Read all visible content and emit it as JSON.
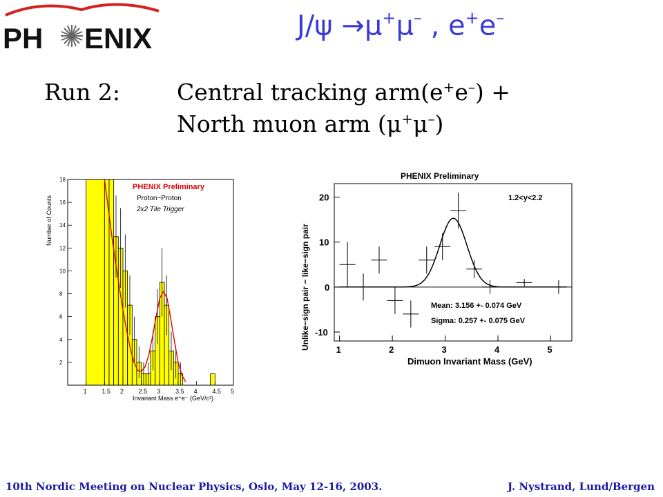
{
  "logo": {
    "text": "PHENIX",
    "colors": {
      "text": "#111111",
      "swoosh": "#d42020",
      "star": "#555555"
    }
  },
  "slide_title": {
    "prefix": "J/ψ →μ",
    "sup1": "+",
    "mid1": "μ",
    "sup2": "–",
    "mid2": " , e",
    "sup3": "+",
    "mid3": "e",
    "sup4": "–"
  },
  "run": {
    "label": "Run 2:",
    "line1": {
      "text": "Central tracking arm(e",
      "sup1": "+",
      "mid": "e",
      "sup2": "–",
      "tail": ") +"
    },
    "line2": {
      "text": "North muon arm (μ",
      "sup1": "+",
      "mid": "μ",
      "sup2": "–",
      "tail": ")"
    }
  },
  "footer": {
    "left": "10th Nordic Meeting on Nuclear Physics, Oslo, May 12-16, 2003.",
    "right": "J. Nystrand, Lund/Bergen"
  },
  "chart_data": [
    {
      "type": "bar",
      "title": "PHENIX Preliminary",
      "annotations": [
        "Proton−Proton",
        "2x2 Tile Trigger"
      ],
      "xlabel": "Invariant Mass e⁺e⁻ (GeV/c²)",
      "ylabel": "Number of Counts",
      "xlim": [
        0.5,
        5
      ],
      "ylim": [
        0,
        18
      ],
      "x_ticks": [
        "1",
        "1.5",
        "2",
        "2.5",
        "3",
        "3.5",
        "4",
        "4.5",
        "5"
      ],
      "y_ticks": [
        "2",
        "4",
        "6",
        "8",
        "10",
        "12",
        "14",
        "16",
        "18"
      ],
      "bins": [
        {
          "x0": 1.0,
          "x1": 1.5,
          "fill": 18,
          "err": 0
        },
        {
          "x0": 1.5,
          "x1": 1.625,
          "fill": 18,
          "err": 0
        },
        {
          "x0": 1.625,
          "x1": 1.75,
          "fill": 18,
          "err": 0
        },
        {
          "x0": 1.75,
          "x1": 1.875,
          "fill": 13,
          "err": 3.6
        },
        {
          "x0": 1.875,
          "x1": 2.0,
          "fill": 12,
          "err": 3.5
        },
        {
          "x0": 2.0,
          "x1": 2.125,
          "fill": 10,
          "err": 3.2
        },
        {
          "x0": 2.125,
          "x1": 2.25,
          "fill": 7,
          "err": 2.6
        },
        {
          "x0": 2.25,
          "x1": 2.375,
          "fill": 4,
          "err": 2.0
        },
        {
          "x0": 2.375,
          "x1": 2.5,
          "fill": 2,
          "err": 1.4
        },
        {
          "x0": 2.5,
          "x1": 2.625,
          "fill": 1,
          "err": 1.0
        },
        {
          "x0": 2.625,
          "x1": 2.75,
          "fill": 1,
          "err": 1.0
        },
        {
          "x0": 2.75,
          "x1": 2.875,
          "fill": 3,
          "err": 1.7
        },
        {
          "x0": 2.875,
          "x1": 3.0,
          "fill": 6,
          "err": 2.4
        },
        {
          "x0": 3.0,
          "x1": 3.125,
          "fill": 9,
          "err": 3.0
        },
        {
          "x0": 3.125,
          "x1": 3.25,
          "fill": 7,
          "err": 2.6
        },
        {
          "x0": 3.25,
          "x1": 3.375,
          "fill": 3,
          "err": 1.7
        },
        {
          "x0": 3.375,
          "x1": 3.5,
          "fill": 2,
          "err": 1.4
        },
        {
          "x0": 3.5,
          "x1": 3.625,
          "fill": 1,
          "err": 1.0
        },
        {
          "x0": 4.375,
          "x1": 4.5,
          "fill": 1,
          "err": 0
        }
      ],
      "fit_curve": {
        "x": [
          1.5,
          1.6,
          1.7,
          1.8,
          1.9,
          2.0,
          2.1,
          2.2,
          2.3,
          2.4,
          2.5,
          2.6,
          2.7,
          2.8,
          2.9,
          3.0,
          3.1,
          3.2,
          3.3,
          3.4,
          3.5,
          3.6,
          3.7
        ],
        "y": [
          18,
          15.5,
          13,
          10.8,
          8.6,
          6.6,
          4.8,
          3.2,
          2.0,
          1.3,
          1.2,
          1.6,
          2.6,
          4.2,
          6.0,
          7.6,
          8.2,
          7.6,
          5.8,
          3.8,
          2.0,
          0.9,
          0.3
        ]
      },
      "colors": {
        "fill": "#ffff00",
        "outline": "#000000",
        "fit": "#e00000",
        "title": "#e00000"
      }
    },
    {
      "type": "scatter",
      "title": "PHENIX Preliminary",
      "annotations": [
        "1.2<y<2.2",
        "Mean: 3.156 +- 0.074 GeV",
        "Sigma: 0.257 +- 0.075 GeV"
      ],
      "xlabel": "Dimuon Invariant Mass (GeV)",
      "ylabel": "Unlike−sign pair − like−sign pair",
      "xlim": [
        0.9,
        5.4
      ],
      "ylim": [
        -12,
        23
      ],
      "x_ticks": [
        "1",
        "2",
        "3",
        "4",
        "5"
      ],
      "y_ticks": [
        "-10",
        "0",
        "10",
        "20"
      ],
      "points": [
        {
          "x": 1.15,
          "y": 5,
          "ex": 0.15,
          "ey": 5
        },
        {
          "x": 1.45,
          "y": 0,
          "ex": 0.0,
          "ey": 3
        },
        {
          "x": 1.75,
          "y": 6,
          "ex": 0.15,
          "ey": 3
        },
        {
          "x": 2.05,
          "y": -3,
          "ex": 0.15,
          "ey": 3
        },
        {
          "x": 2.35,
          "y": -6,
          "ex": 0.15,
          "ey": 3
        },
        {
          "x": 2.65,
          "y": 6,
          "ex": 0.15,
          "ey": 3
        },
        {
          "x": 2.95,
          "y": 9,
          "ex": 0.15,
          "ey": 3
        },
        {
          "x": 3.25,
          "y": 17,
          "ex": 0.15,
          "ey": 4
        },
        {
          "x": 3.55,
          "y": 4,
          "ex": 0.15,
          "ey": 2
        },
        {
          "x": 3.85,
          "y": 0,
          "ex": 0.15,
          "ey": 1.5
        },
        {
          "x": 4.5,
          "y": 1,
          "ex": 0.15,
          "ey": 0.8
        },
        {
          "x": 5.15,
          "y": 0,
          "ex": 0.0,
          "ey": 1.5
        }
      ],
      "fit": {
        "type": "gaussian",
        "mean": 3.156,
        "sigma": 0.257,
        "amplitude": 15.3
      },
      "colors": {
        "marker": "#000000",
        "fit": "#000000"
      }
    }
  ]
}
